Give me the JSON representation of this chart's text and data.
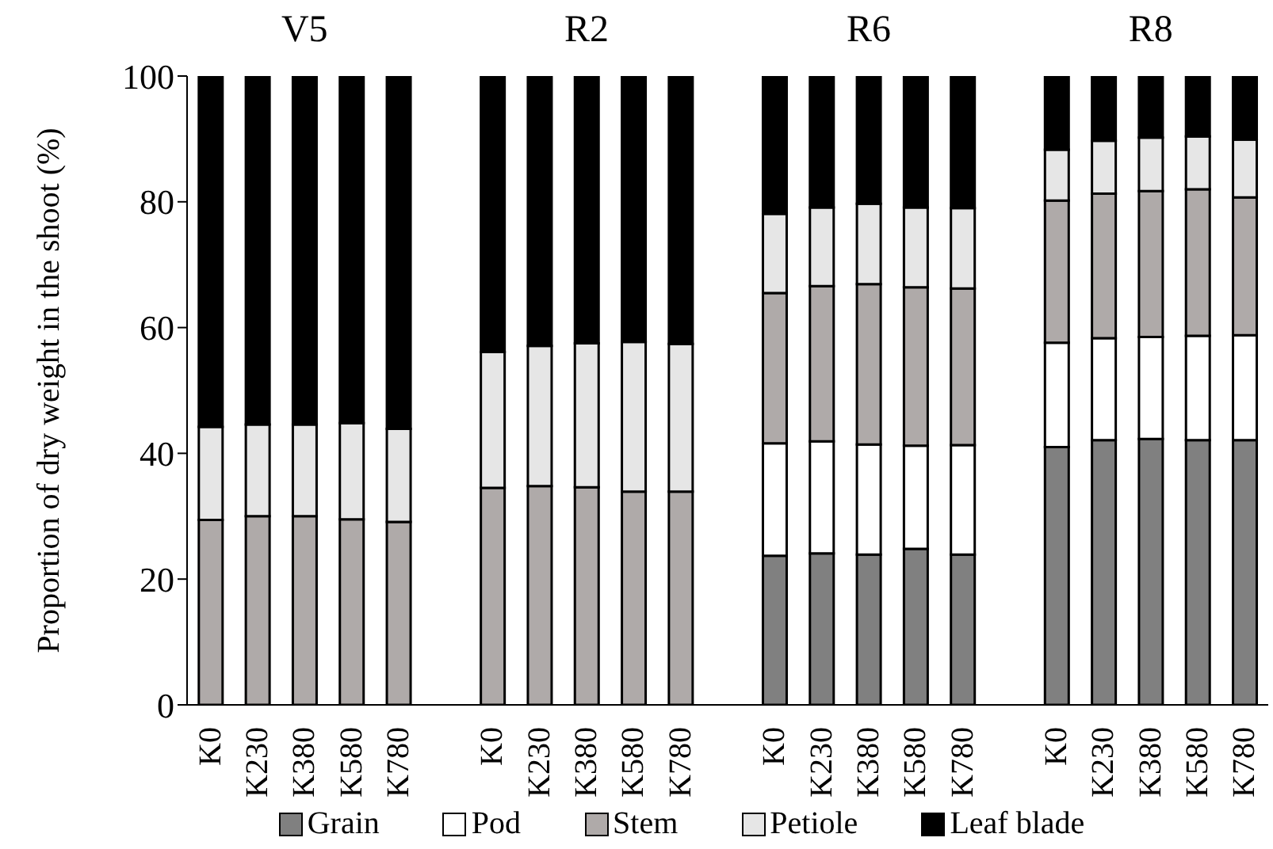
{
  "chart_data": {
    "type": "bar",
    "stacked": true,
    "ylabel": "Proportion of dry  weight in the shoot (%)",
    "categories": [
      "K0",
      "K230",
      "K380",
      "K580",
      "K780",
      null,
      "K0",
      "K230",
      "K380",
      "K580",
      "K780",
      null,
      "K0",
      "K230",
      "K380",
      "K580",
      "K780",
      null,
      "K0",
      "K230",
      "K380",
      "K580",
      "K780"
    ],
    "series": [
      {
        "name": "Grain",
        "color": "#808080",
        "values": [
          0,
          0,
          0,
          0,
          0,
          null,
          0,
          0,
          0,
          0,
          0,
          null,
          23.7,
          24.1,
          23.9,
          24.8,
          23.9,
          null,
          41.0,
          42.1,
          42.3,
          42.1,
          42.1
        ]
      },
      {
        "name": "Pod",
        "color": "#ffffff",
        "values": [
          0,
          0,
          0,
          0,
          0,
          null,
          0,
          0,
          0,
          0,
          0,
          null,
          17.9,
          17.8,
          17.5,
          16.4,
          17.4,
          null,
          16.6,
          16.2,
          16.2,
          16.6,
          16.7
        ]
      },
      {
        "name": "Stem",
        "color": "#afaaa9",
        "values": [
          29.4,
          30.0,
          30.0,
          29.5,
          29.1,
          null,
          34.5,
          34.8,
          34.6,
          33.9,
          33.9,
          null,
          23.9,
          24.7,
          25.5,
          25.2,
          24.9,
          null,
          22.6,
          23.0,
          23.2,
          23.3,
          21.9
        ]
      },
      {
        "name": "Petiole",
        "color": "#e6e6e6",
        "values": [
          14.8,
          14.6,
          14.6,
          15.3,
          14.8,
          null,
          21.6,
          22.3,
          22.9,
          23.8,
          23.5,
          null,
          12.6,
          12.5,
          12.8,
          12.7,
          12.8,
          null,
          8.1,
          8.4,
          8.5,
          8.4,
          9.2
        ]
      },
      {
        "name": "Leaf blade",
        "color": "#000000",
        "values": [
          55.8,
          55.4,
          55.4,
          55.2,
          56.1,
          null,
          43.9,
          42.9,
          42.5,
          42.3,
          42.6,
          null,
          21.9,
          20.9,
          20.3,
          20.9,
          21.0,
          null,
          11.7,
          10.3,
          9.8,
          9.6,
          10.1
        ]
      }
    ],
    "annotations": [
      "V5",
      "R2",
      "R6",
      "R8"
    ],
    "ylim": [
      0,
      100
    ],
    "yticks": [
      0,
      20,
      40,
      60,
      80,
      100
    ],
    "grid": false,
    "legend": "bottom"
  }
}
